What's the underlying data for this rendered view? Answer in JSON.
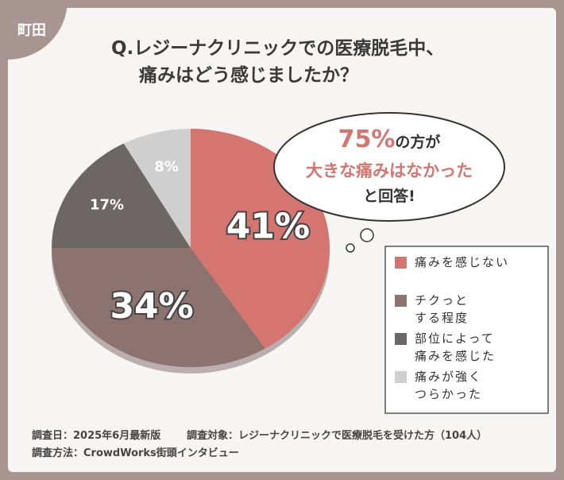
{
  "badge": "町田",
  "chart_data": {
    "type": "pie",
    "title": "Q.レジーナクリニックでの医療脱毛中、\n痛みはどう感じましたか？",
    "categories": [
      "痛みを感じない",
      "チクっと\nする程度",
      "部位によって\n痛みを感じた",
      "痛みが強く\nつらかった"
    ],
    "values": [
      41,
      34,
      17,
      8
    ],
    "value_labels": [
      "41%",
      "34%",
      "17%",
      "8%"
    ],
    "colors": [
      "#d4756f",
      "#8c7370",
      "#6c6664",
      "#d0cfcf"
    ],
    "annotation": {
      "highlight": "75%",
      "line1": "の方が",
      "line2": "大きな痛みはなかった",
      "line3": "と回答!"
    }
  },
  "footer": {
    "date": "調査日：2025年6月最新版",
    "target": "調査対象：レジーナクリニックで医療脱毛を受けた方（104人）",
    "method": "調査方法：CrowdWorks街頭インタビュー"
  }
}
